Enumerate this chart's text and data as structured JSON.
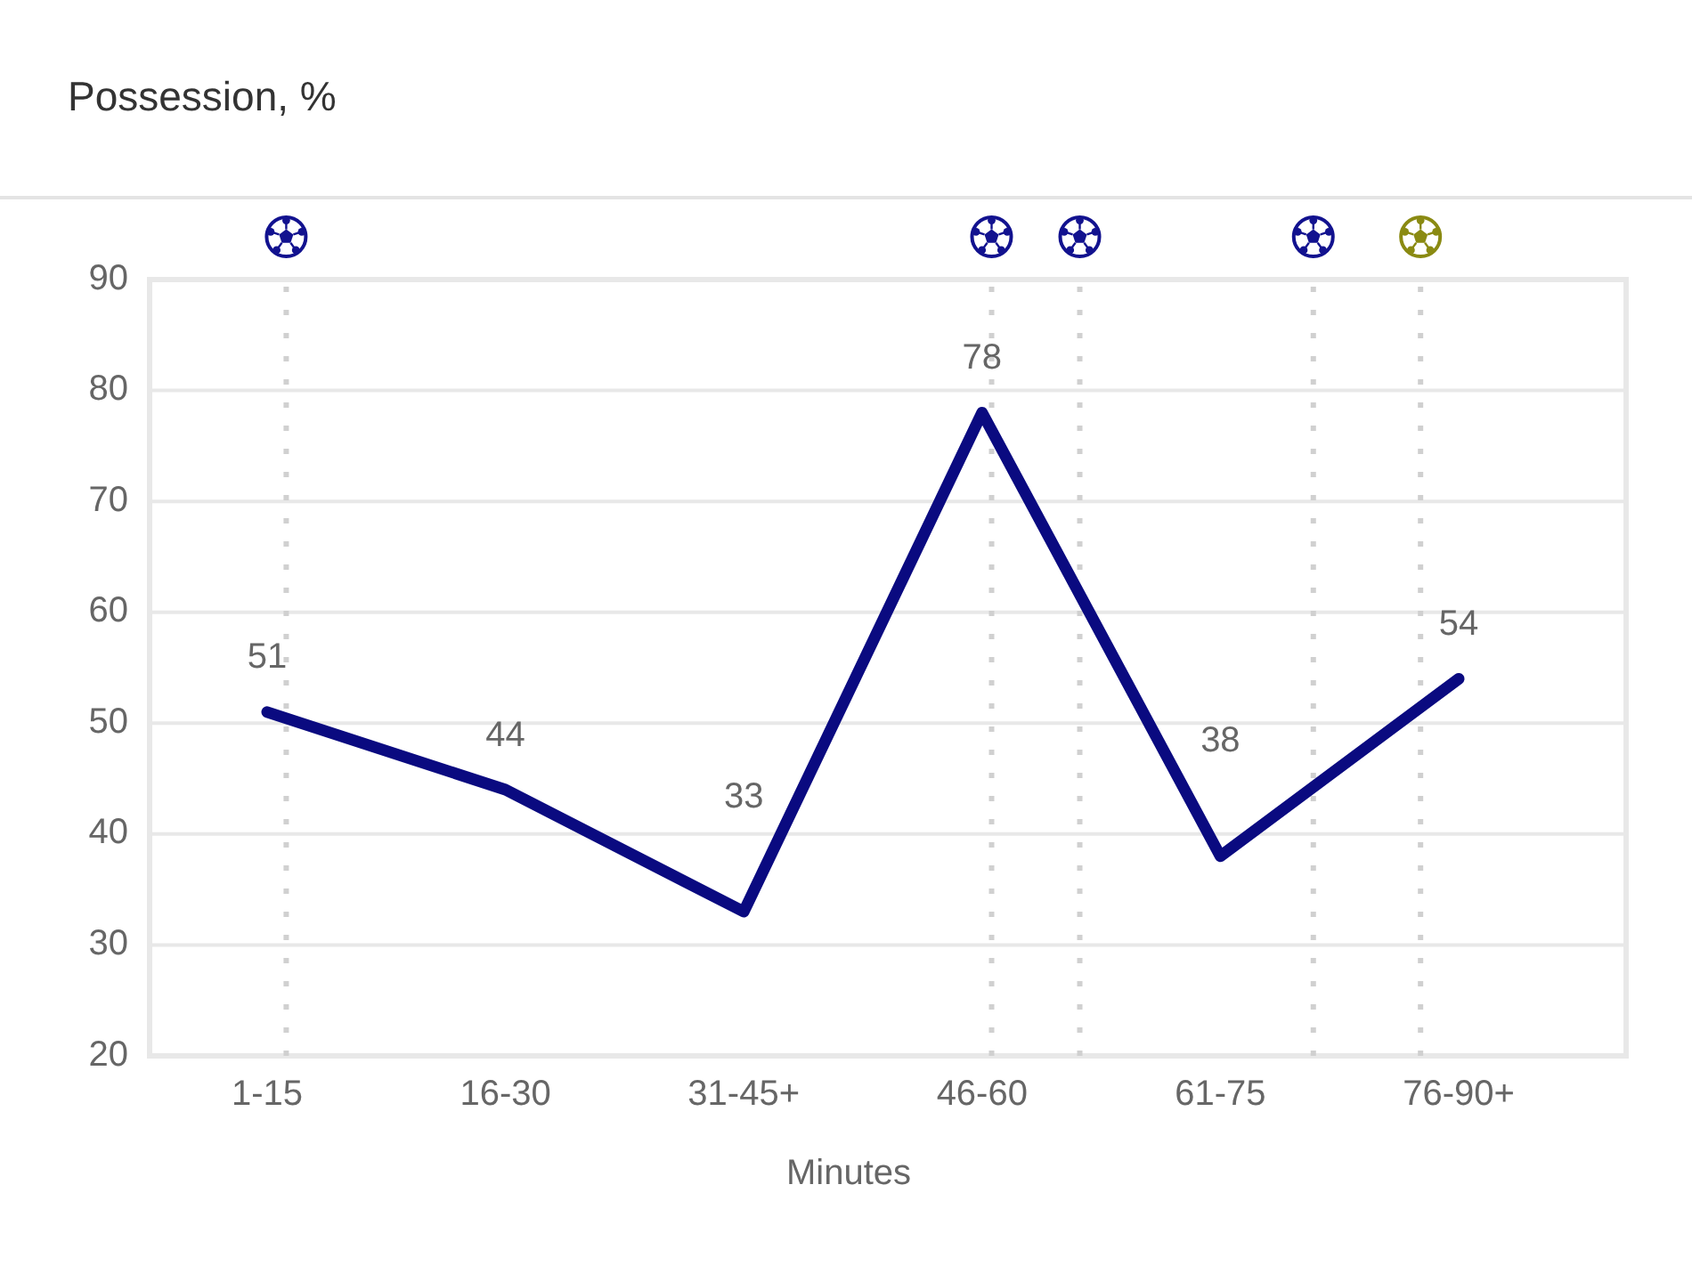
{
  "chart_data": {
    "type": "line",
    "title": "Possession, %",
    "xlabel": "Minutes",
    "categories": [
      "1-15",
      "16-30",
      "31-45+",
      "46-60",
      "61-75",
      "76-90+"
    ],
    "series": [
      {
        "color": "#0a0a80",
        "values": [
          51,
          44,
          33,
          78,
          38,
          54
        ]
      }
    ],
    "ylim": [
      20,
      90
    ],
    "yticks": [
      20,
      30,
      40,
      50,
      60,
      70,
      80,
      90
    ],
    "grid": "y",
    "data_labels": true,
    "line_style": "solid"
  }
}
